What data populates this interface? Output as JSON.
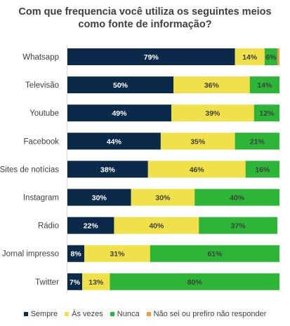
{
  "chart_data": {
    "type": "bar",
    "orientation": "horizontal",
    "stacked": true,
    "title_lines": [
      "Com que frequencia você utiliza os seguintes meios",
      "como fonte de informação?"
    ],
    "categories": [
      "Whatsapp",
      "Televisão",
      "Youtube",
      "Facebook",
      "Sites de notícias",
      "Instagram",
      "Rádio",
      "Jornal impresso",
      "Twitter"
    ],
    "series": [
      {
        "name": "Sempre",
        "color": "#0b2a4a",
        "label_color": "#ffffff",
        "values": [
          79,
          50,
          49,
          44,
          38,
          30,
          22,
          8,
          7
        ]
      },
      {
        "name": "Às vezes",
        "color": "#f0e14a",
        "label_color": "#404040",
        "values": [
          14,
          36,
          39,
          35,
          46,
          30,
          40,
          31,
          13
        ]
      },
      {
        "name": "Nunca",
        "color": "#2db538",
        "label_color": "#404040",
        "values": [
          6,
          14,
          12,
          21,
          16,
          40,
          37,
          61,
          80
        ]
      },
      {
        "name": "Não sei ou prefiro não responder",
        "color": "#f39a3c",
        "label_color": "#404040",
        "values": [
          1,
          0,
          0,
          0,
          0,
          0,
          0,
          0,
          0
        ]
      }
    ],
    "value_suffix": "%",
    "xlim": [
      0,
      100
    ],
    "legend_position": "bottom",
    "grid": false
  }
}
